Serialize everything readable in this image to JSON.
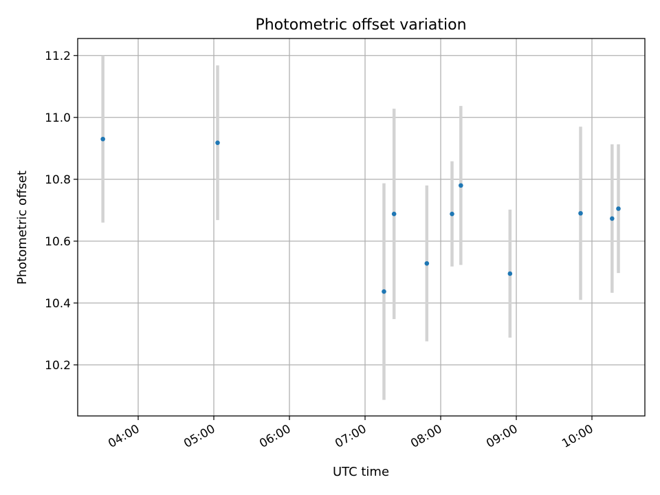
{
  "chart_data": {
    "type": "scatter",
    "title": "Photometric offset variation",
    "xlabel": "UTC time",
    "ylabel": "Photometric offset",
    "x_ticks": [
      "04:00",
      "05:00",
      "06:00",
      "07:00",
      "08:00",
      "09:00",
      "10:00"
    ],
    "y_ticks": [
      "10.2",
      "10.4",
      "10.6",
      "10.8",
      "11.0",
      "11.2"
    ],
    "xlim": [
      "03:12",
      "10:42"
    ],
    "ylim": [
      10.035,
      11.255
    ],
    "grid": true,
    "point_color": "#1f77b4",
    "errorbar_color": "#d3d3d3",
    "points": [
      {
        "x": "03:32",
        "y": 10.93,
        "yerr": 0.27
      },
      {
        "x": "05:03",
        "y": 10.918,
        "yerr": 0.25
      },
      {
        "x": "07:15",
        "y": 10.437,
        "yerr": 0.35
      },
      {
        "x": "07:23",
        "y": 10.688,
        "yerr": 0.34
      },
      {
        "x": "07:49",
        "y": 10.528,
        "yerr": 0.252
      },
      {
        "x": "08:09",
        "y": 10.688,
        "yerr": 0.17
      },
      {
        "x": "08:16",
        "y": 10.78,
        "yerr": 0.257
      },
      {
        "x": "08:55",
        "y": 10.495,
        "yerr": 0.207
      },
      {
        "x": "09:51",
        "y": 10.69,
        "yerr": 0.28
      },
      {
        "x": "10:16",
        "y": 10.673,
        "yerr": 0.24
      },
      {
        "x": "10:21",
        "y": 10.705,
        "yerr": 0.208
      }
    ]
  }
}
